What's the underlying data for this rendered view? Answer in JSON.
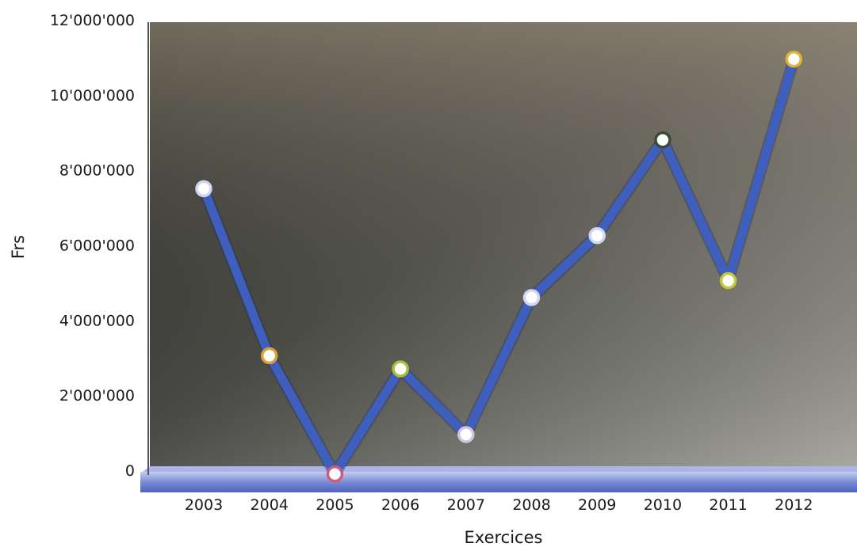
{
  "chart_data": {
    "type": "line",
    "xlabel": "Exercices",
    "ylabel": "Frs",
    "categories": [
      "2003",
      "2004",
      "2005",
      "2006",
      "2007",
      "2008",
      "2009",
      "2010",
      "2011",
      "2012"
    ],
    "values": [
      7500000,
      3050000,
      -100000,
      2700000,
      950000,
      4600000,
      6250000,
      8800000,
      5050000,
      10950000
    ],
    "ylim": [
      0,
      12000000
    ],
    "yticks": [
      0,
      2000000,
      4000000,
      6000000,
      8000000,
      10000000,
      12000000
    ],
    "ytick_labels": [
      "0",
      "2'000'000",
      "4'000'000",
      "6'000'000",
      "8'000'000",
      "10'000'000",
      "12'000'000"
    ],
    "grid": false,
    "legend": "none",
    "line_color": "#3f5fbe",
    "marker_fill": "#ffffff",
    "marker_rims": [
      "#cfd6f2",
      "#d9a33a",
      "#d25a78",
      "#a8c23a",
      "#cfc6de",
      "#cfd6f2",
      "#cfd6f2",
      "#3a4a35",
      "#c2c93a",
      "#e0b43a"
    ]
  }
}
